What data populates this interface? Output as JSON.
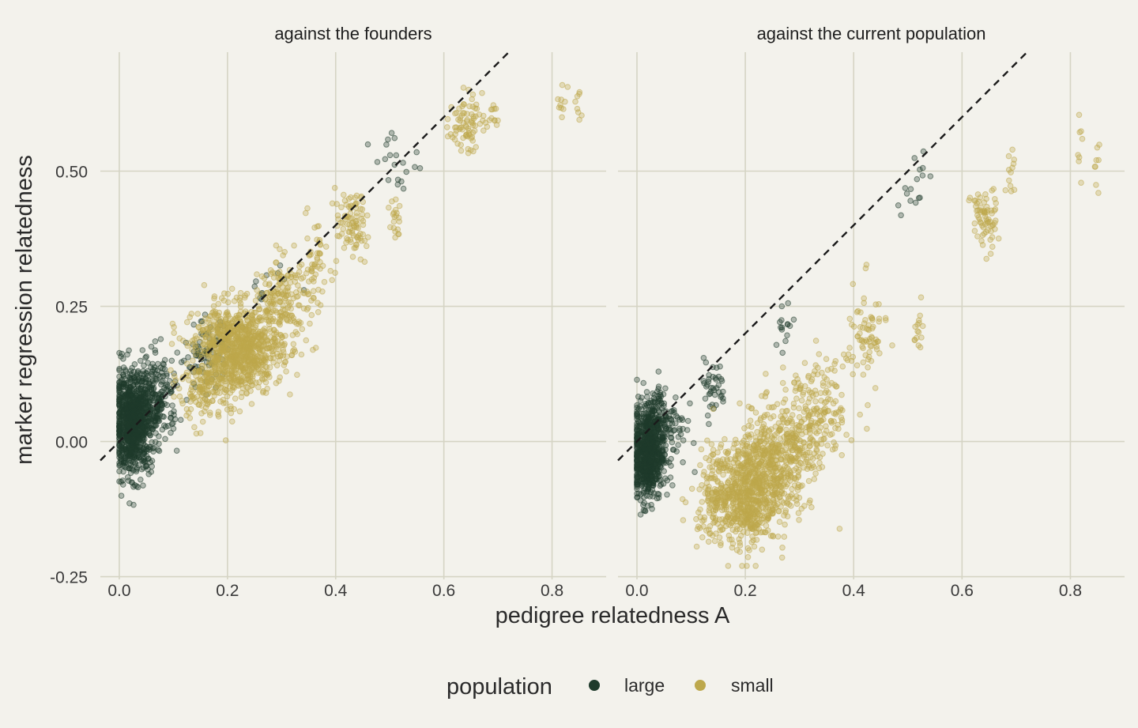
{
  "chart_data": {
    "type": "scatter",
    "xlabel": "pedigree relatedness A",
    "ylabel": "marker regression relatedness",
    "xlim": [
      -0.035,
      0.9
    ],
    "ylim": [
      -0.255,
      0.72
    ],
    "x_ticks": [
      0.0,
      0.2,
      0.4,
      0.6,
      0.8
    ],
    "x_tick_labels": [
      "0.0",
      "0.2",
      "0.4",
      "0.6",
      "0.8"
    ],
    "y_ticks": [
      -0.25,
      0.0,
      0.25,
      0.5
    ],
    "y_tick_labels": [
      "-0.25",
      "0.00",
      "0.25",
      "0.50"
    ],
    "grid": true,
    "reference_line": {
      "style": "dashed",
      "slope": 1,
      "intercept": 0,
      "color": "#1A1A1A"
    },
    "legend": {
      "title": "population",
      "placement": "bottom",
      "entries": [
        {
          "label": "large",
          "color": "#1F3B2C"
        },
        {
          "label": "small",
          "color": "#BDA84C"
        }
      ]
    },
    "panels": [
      {
        "title": "against the founders",
        "series": [
          {
            "name": "large",
            "color": "#1F3B2C",
            "clusters": [
              {
                "x": 0.025,
                "sx": 0.018,
                "y": 0.035,
                "sy": 0.045,
                "n": 950
              },
              {
                "x": 0.07,
                "sx": 0.02,
                "y": 0.08,
                "sy": 0.04,
                "n": 200
              },
              {
                "x": 0.16,
                "sx": 0.02,
                "y": 0.16,
                "sy": 0.03,
                "n": 80
              },
              {
                "x": 0.27,
                "sx": 0.02,
                "y": 0.27,
                "sy": 0.03,
                "n": 12
              },
              {
                "x": 0.51,
                "sx": 0.02,
                "y": 0.53,
                "sy": 0.03,
                "n": 20
              }
            ]
          },
          {
            "name": "small",
            "color": "#BDA84C",
            "clusters": [
              {
                "x": 0.22,
                "sx": 0.04,
                "y": 0.17,
                "sy": 0.04,
                "n": 900
              },
              {
                "x": 0.16,
                "sx": 0.025,
                "y": 0.1,
                "sy": 0.035,
                "n": 150
              },
              {
                "x": 0.3,
                "sx": 0.025,
                "y": 0.26,
                "sy": 0.04,
                "n": 180
              },
              {
                "x": 0.36,
                "sx": 0.015,
                "y": 0.32,
                "sy": 0.04,
                "n": 60
              },
              {
                "x": 0.43,
                "sx": 0.015,
                "y": 0.4,
                "sy": 0.03,
                "n": 90
              },
              {
                "x": 0.51,
                "sx": 0.005,
                "y": 0.41,
                "sy": 0.02,
                "n": 20
              },
              {
                "x": 0.64,
                "sx": 0.015,
                "y": 0.59,
                "sy": 0.025,
                "n": 80
              },
              {
                "x": 0.69,
                "sx": 0.005,
                "y": 0.6,
                "sy": 0.015,
                "n": 12
              },
              {
                "x": 0.82,
                "sx": 0.005,
                "y": 0.63,
                "sy": 0.03,
                "n": 10
              },
              {
                "x": 0.85,
                "sx": 0.003,
                "y": 0.63,
                "sy": 0.02,
                "n": 8
              }
            ]
          }
        ]
      },
      {
        "title": "against the current population",
        "series": [
          {
            "name": "large",
            "color": "#1F3B2C",
            "clusters": [
              {
                "x": 0.02,
                "sx": 0.015,
                "y": -0.02,
                "sy": 0.045,
                "n": 700
              },
              {
                "x": 0.05,
                "sx": 0.02,
                "y": 0.03,
                "sy": 0.04,
                "n": 150
              },
              {
                "x": 0.14,
                "sx": 0.012,
                "y": 0.1,
                "sy": 0.025,
                "n": 40
              },
              {
                "x": 0.27,
                "sx": 0.015,
                "y": 0.21,
                "sy": 0.03,
                "n": 15
              },
              {
                "x": 0.51,
                "sx": 0.015,
                "y": 0.49,
                "sy": 0.03,
                "n": 16
              }
            ]
          },
          {
            "name": "small",
            "color": "#BDA84C",
            "clusters": [
              {
                "x": 0.2,
                "sx": 0.03,
                "y": -0.1,
                "sy": 0.045,
                "n": 600
              },
              {
                "x": 0.25,
                "sx": 0.03,
                "y": -0.04,
                "sy": 0.05,
                "n": 400
              },
              {
                "x": 0.14,
                "sx": 0.02,
                "y": -0.1,
                "sy": 0.04,
                "n": 120
              },
              {
                "x": 0.31,
                "sx": 0.025,
                "y": 0.02,
                "sy": 0.06,
                "n": 200
              },
              {
                "x": 0.36,
                "sx": 0.015,
                "y": 0.06,
                "sy": 0.04,
                "n": 60
              },
              {
                "x": 0.42,
                "sx": 0.02,
                "y": 0.19,
                "sy": 0.05,
                "n": 80
              },
              {
                "x": 0.52,
                "sx": 0.004,
                "y": 0.2,
                "sy": 0.03,
                "n": 15
              },
              {
                "x": 0.64,
                "sx": 0.012,
                "y": 0.41,
                "sy": 0.03,
                "n": 70
              },
              {
                "x": 0.69,
                "sx": 0.005,
                "y": 0.5,
                "sy": 0.02,
                "n": 12
              },
              {
                "x": 0.82,
                "sx": 0.005,
                "y": 0.55,
                "sy": 0.04,
                "n": 8
              },
              {
                "x": 0.85,
                "sx": 0.003,
                "y": 0.52,
                "sy": 0.025,
                "n": 8
              }
            ]
          }
        ]
      }
    ]
  }
}
